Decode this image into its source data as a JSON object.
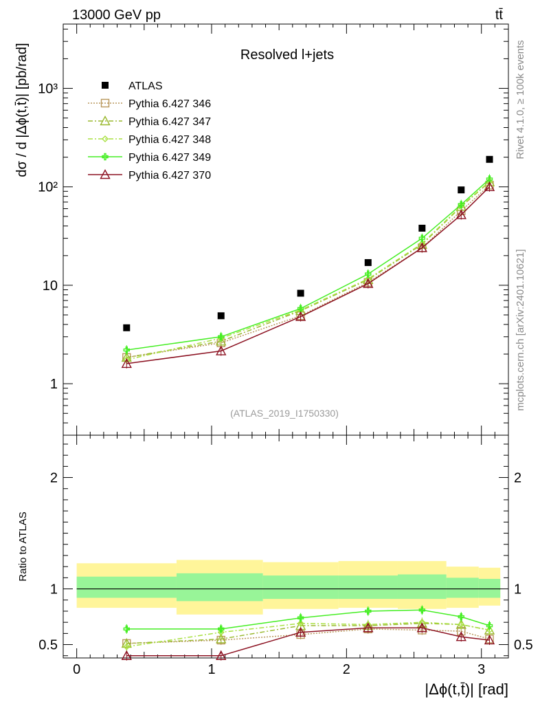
{
  "header": {
    "energy_label": "13000 GeV pp",
    "process_label": "tt̄"
  },
  "side_labels": {
    "rivet": "Rivet 4.1.0, ≥ 100k events",
    "mcplots": "mcplots.cern.ch [arXiv:2401.10621]"
  },
  "colors": {
    "atlas": "#000000",
    "p346": "#b8965a",
    "p347": "#9ab82e",
    "p348": "#a8e040",
    "p349": "#44ee22",
    "p370": "#8b1020",
    "band_outer": "#fff59a",
    "band_inner": "#98f598"
  },
  "chart_data": [
    {
      "type": "line",
      "title": "Resolved l+jets",
      "watermark": "(ATLAS_2019_I1750330)",
      "ylabel": "dσ / d |Δϕ(t,t̄)| [pb/rad]",
      "xlabel": "",
      "yscale": "log",
      "ylim": [
        0.3,
        4500
      ],
      "xlim": [
        -0.1,
        3.2
      ],
      "yticks": [
        {
          "value": 1,
          "label": "1"
        },
        {
          "value": 10,
          "label": "10"
        },
        {
          "value": 100,
          "label": "10²"
        },
        {
          "value": 1000,
          "label": "10³"
        }
      ],
      "x": [
        0.37,
        1.07,
        1.66,
        2.16,
        2.56,
        2.85,
        3.06
      ],
      "series": [
        {
          "name": "ATLAS",
          "key": "atlas",
          "style": "points",
          "values": [
            3.7,
            4.9,
            8.3,
            17,
            38,
            93,
            190
          ]
        },
        {
          "name": "Pythia 6.427 346",
          "key": "p346",
          "style": "dotted",
          "marker": "square",
          "values": [
            1.85,
            2.6,
            4.9,
            10.7,
            24,
            57,
            104
          ]
        },
        {
          "name": "Pythia 6.427 347",
          "key": "p347",
          "style": "dashdot",
          "marker": "triangle",
          "values": [
            1.85,
            2.7,
            5.5,
            11.4,
            26,
            63,
            112
          ]
        },
        {
          "name": "Pythia 6.427 348",
          "key": "p348",
          "style": "dashdot",
          "marker": "diamond",
          "values": [
            1.75,
            2.9,
            5.6,
            11.6,
            26.5,
            64,
            113
          ]
        },
        {
          "name": "Pythia 6.427 349",
          "key": "p349",
          "style": "solid",
          "marker": "cross",
          "values": [
            2.2,
            3.0,
            5.8,
            13.0,
            30,
            66,
            120
          ]
        },
        {
          "name": "Pythia 6.427 370",
          "key": "p370",
          "style": "solid",
          "marker": "triangle",
          "values": [
            1.6,
            2.15,
            4.8,
            10.4,
            24,
            52,
            100
          ]
        }
      ]
    },
    {
      "type": "line",
      "title": "",
      "ylabel": "Ratio to ATLAS",
      "xlabel": "|Δϕ(t,t̄)| [rad]",
      "ylim": [
        0.38,
        2.38
      ],
      "xlim": [
        -0.1,
        3.2
      ],
      "yticks": [
        {
          "value": 0.5,
          "label": "0.5"
        },
        {
          "value": 1,
          "label": "1"
        },
        {
          "value": 2,
          "label": "2"
        }
      ],
      "xticks": [
        {
          "value": 0,
          "label": "0"
        },
        {
          "value": 1,
          "label": "1"
        },
        {
          "value": 2,
          "label": "2"
        },
        {
          "value": 3,
          "label": "3"
        }
      ],
      "bands": {
        "edges": [
          0,
          0.74,
          1.38,
          1.94,
          2.38,
          2.74,
          2.98,
          3.14
        ],
        "outer_low": [
          0.83,
          0.77,
          0.82,
          0.83,
          0.82,
          0.83,
          0.85
        ],
        "outer_high": [
          1.23,
          1.26,
          1.24,
          1.25,
          1.25,
          1.2,
          1.19
        ],
        "inner_low": [
          0.92,
          0.89,
          0.91,
          0.91,
          0.91,
          0.92,
          0.92
        ],
        "inner_high": [
          1.11,
          1.14,
          1.12,
          1.12,
          1.13,
          1.1,
          1.09
        ]
      },
      "x": [
        0.37,
        1.07,
        1.66,
        2.16,
        2.56,
        2.85,
        3.06
      ],
      "series": [
        {
          "name": "Pythia 6.427 346",
          "key": "p346",
          "style": "dotted",
          "marker": "square",
          "values": [
            0.51,
            0.54,
            0.59,
            0.64,
            0.63,
            0.62,
            0.55
          ]
        },
        {
          "name": "Pythia 6.427 347",
          "key": "p347",
          "style": "dashdot",
          "marker": "triangle",
          "values": [
            0.51,
            0.55,
            0.67,
            0.67,
            0.69,
            0.68,
            0.63
          ]
        },
        {
          "name": "Pythia 6.427 348",
          "key": "p348",
          "style": "dashdot",
          "marker": "diamond",
          "values": [
            0.48,
            0.61,
            0.69,
            0.68,
            0.7,
            0.68,
            0.63
          ]
        },
        {
          "name": "Pythia 6.427 349",
          "key": "p349",
          "style": "solid",
          "marker": "cross",
          "values": [
            0.64,
            0.64,
            0.74,
            0.8,
            0.81,
            0.75,
            0.67
          ]
        },
        {
          "name": "Pythia 6.427 370",
          "key": "p370",
          "style": "solid",
          "marker": "triangle",
          "values": [
            0.4,
            0.4,
            0.61,
            0.65,
            0.65,
            0.57,
            0.54
          ]
        }
      ]
    }
  ]
}
